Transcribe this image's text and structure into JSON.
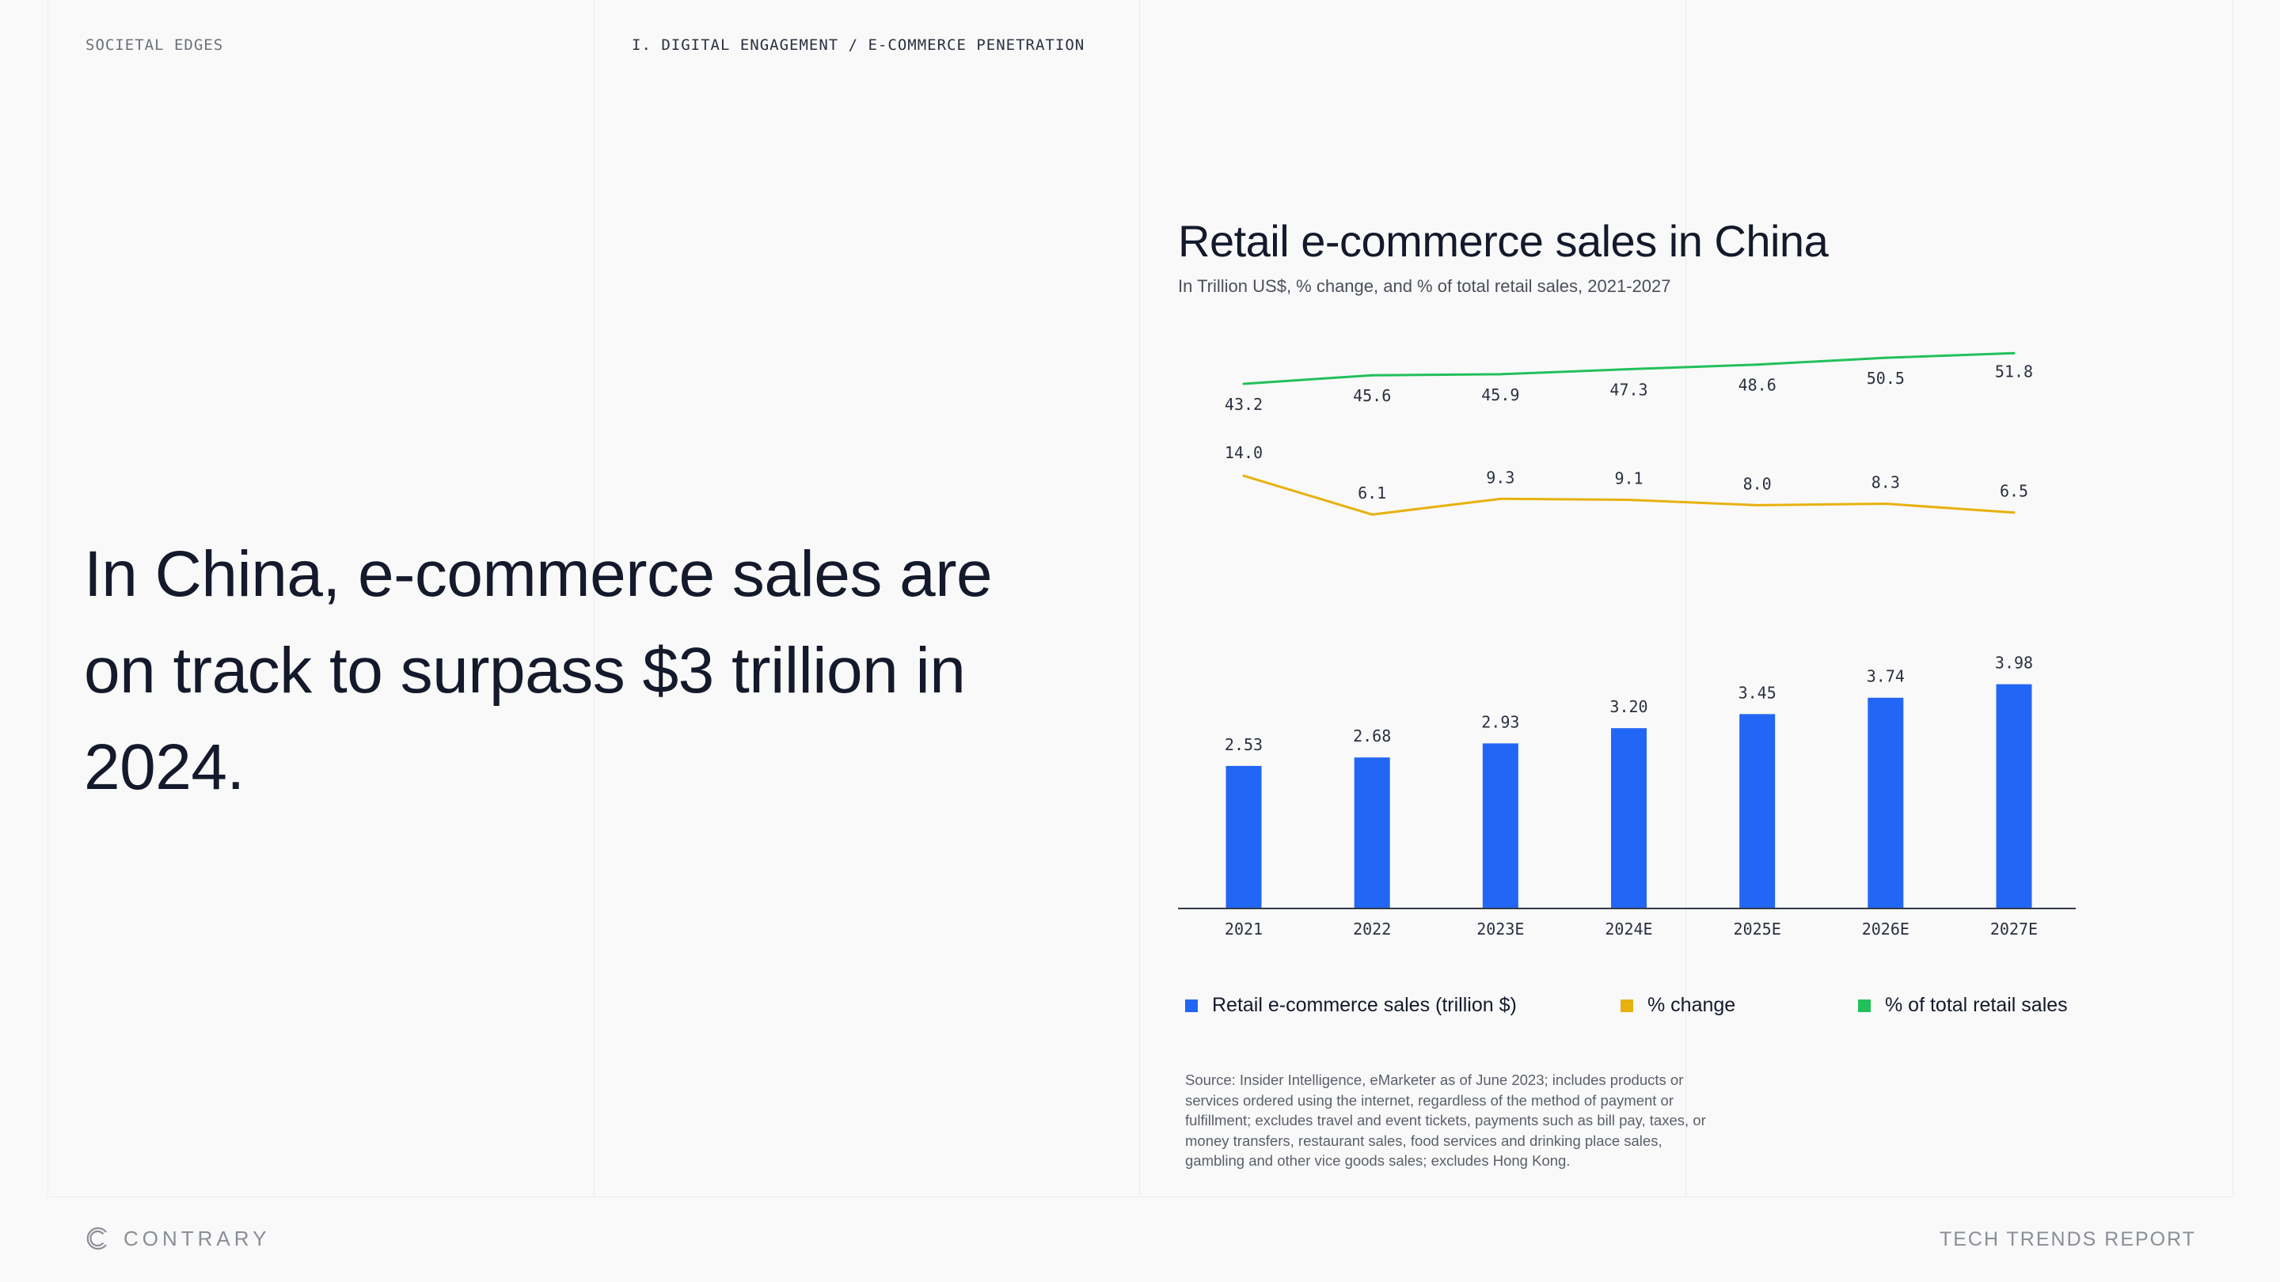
{
  "header": {
    "section_left": "SOCIETAL EDGES",
    "section_right": "I. DIGITAL ENGAGEMENT / E-COMMERCE PENETRATION"
  },
  "headline": "In China, e-commerce sales are on track to surpass $3 trillion in 2024.",
  "colors": {
    "bar": "#2266f5",
    "change": "#e8b10e",
    "share": "#22c05a",
    "text": "#141a2b"
  },
  "chart_data": {
    "type": "bar",
    "title": "Retail e-commerce sales in China",
    "subtitle": "In Trillion US$, % change, and % of total retail sales, 2021-2027",
    "categories": [
      "2021",
      "2022",
      "2023E",
      "2024E",
      "2025E",
      "2026E",
      "2027E"
    ],
    "series": [
      {
        "name": "Retail e-commerce sales (trillion $)",
        "type": "bar",
        "values": [
          2.53,
          2.68,
          2.93,
          3.2,
          3.45,
          3.74,
          3.98
        ],
        "labels": [
          "2.53",
          "2.68",
          "2.93",
          "3.20",
          "3.45",
          "3.74",
          "3.98"
        ]
      },
      {
        "name": "% change",
        "type": "line",
        "values": [
          14.0,
          6.1,
          9.3,
          9.1,
          8.0,
          8.3,
          6.5
        ],
        "labels": [
          "14.0",
          "6.1",
          "9.3",
          "9.1",
          "8.0",
          "8.3",
          "6.5"
        ]
      },
      {
        "name": "% of total retail sales",
        "type": "line",
        "values": [
          43.2,
          45.6,
          45.9,
          47.3,
          48.6,
          50.5,
          51.8
        ],
        "labels": [
          "43.2",
          "45.6",
          "45.9",
          "47.3",
          "48.6",
          "50.5",
          "51.8"
        ]
      }
    ],
    "legend_position": "bottom",
    "grid": false
  },
  "source": "Source: Insider Intelligence, eMarketer as of June 2023; includes products or services ordered using the internet, regardless of the method of payment or fulfillment; excludes travel and event tickets, payments such as bill pay, taxes, or money transfers, restaurant sales, food services and drinking place sales, gambling and other vice goods sales; excludes Hong Kong.",
  "footer": {
    "logo_text": "CONTRARY",
    "report": "TECH TRENDS REPORT"
  }
}
